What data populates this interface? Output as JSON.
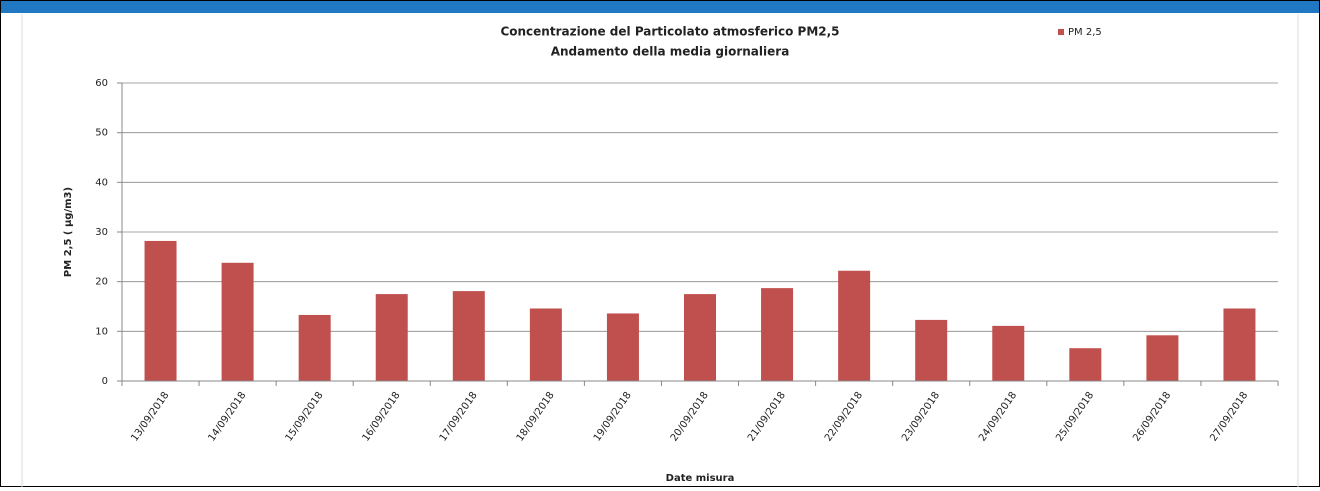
{
  "chart_data": {
    "type": "bar",
    "title": "Concentrazione del Particolato atmosferico PM2,5",
    "subtitle": "Andamento della media giornaliera",
    "x_label": "Date misura",
    "y_label": "PM 2,5 ( µg/m3)",
    "categories": [
      "13/09/2018",
      "14/09/2018",
      "15/09/2018",
      "16/09/2018",
      "17/09/2018",
      "18/09/2018",
      "19/09/2018",
      "20/09/2018",
      "21/09/2018",
      "22/09/2018",
      "23/09/2018",
      "24/09/2018",
      "25/09/2018",
      "26/09/2018",
      "27/09/2018"
    ],
    "series": [
      {
        "name": "PM 2,5",
        "color": "#c0504d",
        "values": [
          28.2,
          23.8,
          13.3,
          17.5,
          18.1,
          14.6,
          13.6,
          17.5,
          18.7,
          22.2,
          12.3,
          11.1,
          6.6,
          9.2,
          14.6
        ]
      }
    ],
    "ylim": [
      0,
      60
    ],
    "yticks": [
      0,
      10,
      20,
      30,
      40,
      50,
      60
    ],
    "grid": true,
    "legend": "top-right"
  }
}
